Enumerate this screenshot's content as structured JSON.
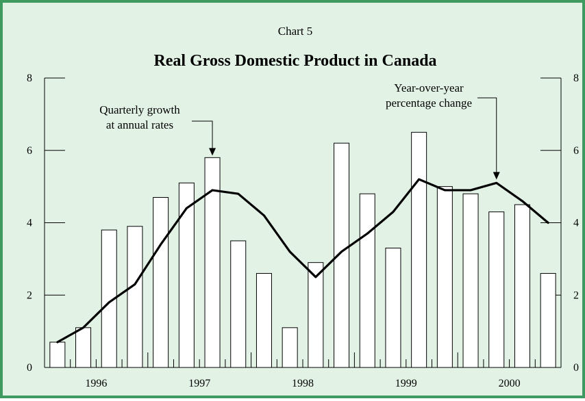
{
  "chart_data": {
    "type": "bar",
    "supertitle": "Chart 5",
    "title": "Real Gross Domestic Product in Canada",
    "xlabel": "",
    "ylabel": "",
    "ylim": [
      0,
      8
    ],
    "yticks": [
      0,
      2,
      4,
      6,
      8
    ],
    "year_labels": [
      "1996",
      "1997",
      "1998",
      "1999",
      "2000"
    ],
    "grid": false,
    "series": [
      {
        "type": "bar",
        "values": [
          0.7,
          1.1,
          3.8,
          3.9,
          4.7,
          5.1,
          5.8,
          3.5,
          2.6,
          1.1,
          2.9,
          6.2,
          4.8,
          3.3,
          6.5,
          5.0,
          4.8,
          4.3,
          4.5,
          2.6
        ]
      },
      {
        "type": "line",
        "values": [
          0.7,
          1.1,
          1.8,
          2.3,
          3.4,
          4.4,
          4.9,
          4.8,
          4.2,
          3.2,
          2.5,
          3.2,
          3.7,
          4.3,
          5.2,
          4.9,
          4.9,
          5.1,
          4.6,
          4.0
        ]
      }
    ],
    "annotations": [
      {
        "lines": [
          "Quarterly growth",
          "at annual rates"
        ],
        "target_series": 0,
        "target_index": 6
      },
      {
        "lines": [
          "Year-over-year",
          "percentage change"
        ],
        "target_series": 1,
        "target_index": 17
      }
    ],
    "colors": {
      "frame": "#3f9a62",
      "background": "#e2f3e6",
      "bar_fill": "#ffffff",
      "ink": "#000000"
    }
  }
}
